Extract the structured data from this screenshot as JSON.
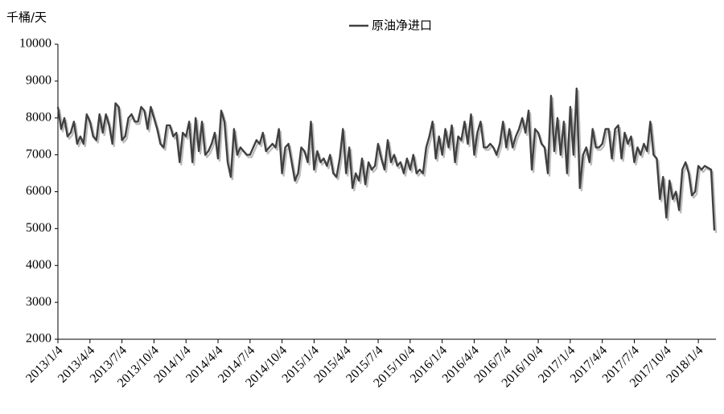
{
  "chart_data": {
    "type": "line",
    "y_label": "千桶/天",
    "ylim": [
      2000,
      10000
    ],
    "yticks": [
      2000,
      3000,
      4000,
      5000,
      6000,
      7000,
      8000,
      9000,
      10000
    ],
    "legend": "top",
    "categories": [
      "2013/1/4",
      null,
      null,
      null,
      null,
      null,
      null,
      null,
      null,
      null,
      "2013/4/4",
      null,
      null,
      null,
      null,
      null,
      null,
      null,
      null,
      null,
      "2013/7/4",
      null,
      null,
      null,
      null,
      null,
      null,
      null,
      null,
      null,
      "2013/10/4",
      null,
      null,
      null,
      null,
      null,
      null,
      null,
      null,
      null,
      "2014/1/4",
      null,
      null,
      null,
      null,
      null,
      null,
      null,
      null,
      null,
      "2014/4/4",
      null,
      null,
      null,
      null,
      null,
      null,
      null,
      null,
      null,
      "2014/7/4",
      null,
      null,
      null,
      null,
      null,
      null,
      null,
      null,
      null,
      "2014/10/4",
      null,
      null,
      null,
      null,
      null,
      null,
      null,
      null,
      null,
      "2015/1/4",
      null,
      null,
      null,
      null,
      null,
      null,
      null,
      null,
      null,
      "2015/4/4",
      null,
      null,
      null,
      null,
      null,
      null,
      null,
      null,
      null,
      "2015/7/4",
      null,
      null,
      null,
      null,
      null,
      null,
      null,
      null,
      null,
      "2015/10/4",
      null,
      null,
      null,
      null,
      null,
      null,
      null,
      null,
      null,
      "2016/1/4",
      null,
      null,
      null,
      null,
      null,
      null,
      null,
      null,
      null,
      "2016/4/4",
      null,
      null,
      null,
      null,
      null,
      null,
      null,
      null,
      null,
      "2016/7/4",
      null,
      null,
      null,
      null,
      null,
      null,
      null,
      null,
      null,
      "2016/10/4",
      null,
      null,
      null,
      null,
      null,
      null,
      null,
      null,
      null,
      "2017/1/4",
      null,
      null,
      null,
      null,
      null,
      null,
      null,
      null,
      null,
      "2017/4/4",
      null,
      null,
      null,
      null,
      null,
      null,
      null,
      null,
      null,
      "2017/7/4",
      null,
      null,
      null,
      null,
      null,
      null,
      null,
      null,
      null,
      "2017/10/4",
      null,
      null,
      null,
      null,
      null,
      null,
      null,
      null,
      null,
      "2018/1/4",
      null,
      null,
      null,
      null,
      null
    ],
    "series": [
      {
        "name": "原油净进口",
        "color": "#404040",
        "values": [
          8300,
          7700,
          8000,
          7500,
          7600,
          7900,
          7300,
          7500,
          7300,
          8100,
          7900,
          7500,
          7400,
          8100,
          7600,
          8100,
          7800,
          7300,
          8400,
          8300,
          7400,
          7500,
          8000,
          8100,
          7900,
          7900,
          8300,
          8200,
          7700,
          8300,
          8000,
          7700,
          7300,
          7200,
          7800,
          7800,
          7500,
          7600,
          6800,
          7600,
          7500,
          7900,
          6800,
          8000,
          7100,
          7900,
          7000,
          7100,
          7300,
          7600,
          6900,
          8200,
          7900,
          6800,
          6400,
          7700,
          7000,
          7200,
          7100,
          7000,
          7000,
          7200,
          7400,
          7300,
          7600,
          7100,
          7200,
          7300,
          7200,
          7700,
          6500,
          7200,
          7300,
          6800,
          6300,
          6500,
          7200,
          7100,
          6800,
          7900,
          6600,
          7100,
          6800,
          6900,
          6700,
          7000,
          6500,
          6400,
          6900,
          7700,
          6500,
          7200,
          6100,
          6500,
          6300,
          6900,
          6200,
          6800,
          6600,
          6700,
          7300,
          6900,
          6600,
          7400,
          6800,
          7000,
          6700,
          6800,
          6500,
          6900,
          6600,
          7000,
          6500,
          6600,
          6500,
          7200,
          7500,
          7900,
          6900,
          7500,
          7000,
          7700,
          7200,
          7800,
          6800,
          7500,
          7400,
          7900,
          7300,
          8100,
          7000,
          7600,
          7900,
          7200,
          7200,
          7300,
          7200,
          7000,
          7300,
          7900,
          7200,
          7700,
          7200,
          7500,
          7700,
          8000,
          7600,
          8200,
          6600,
          7700,
          7600,
          7300,
          7200,
          6500,
          8600,
          7100,
          8000,
          7000,
          7900,
          6500,
          8300,
          7000,
          8800,
          6100,
          7000,
          7200,
          6800,
          7700,
          7200,
          7200,
          7300,
          7700,
          7700,
          6900,
          7700,
          7800,
          6900,
          7600,
          7300,
          7500,
          6800,
          7200,
          7000,
          7300,
          7100,
          7900,
          7000,
          6900,
          5800,
          6400,
          5300,
          6300,
          5800,
          6000,
          5500,
          6600,
          6800,
          6500,
          5900,
          6000,
          6700,
          6600,
          6700,
          6650,
          6600,
          4950
        ]
      }
    ]
  }
}
